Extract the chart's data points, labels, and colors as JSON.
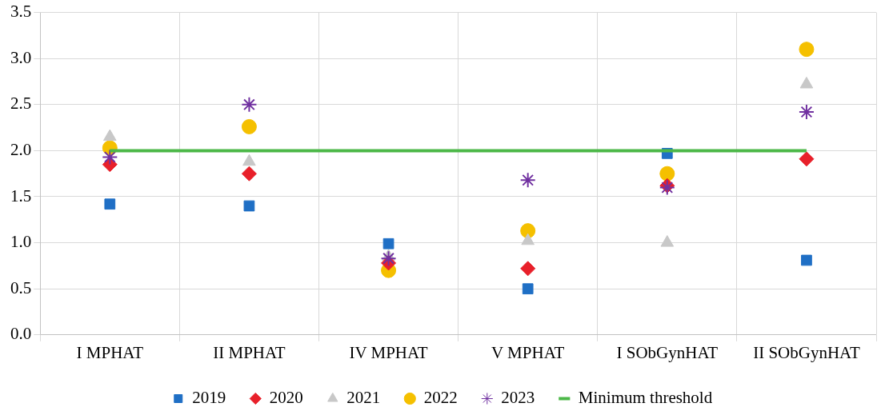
{
  "chart_data": {
    "type": "scatter",
    "categories": [
      "I MPHAT",
      "II MPHAT",
      "IV MPHAT",
      "V MPHAT",
      "I SObGynHAT",
      "II SObGynHAT"
    ],
    "series": [
      {
        "name": "2019",
        "color": "#1f6fc5",
        "marker": "square",
        "values": [
          1.42,
          1.4,
          0.99,
          0.5,
          1.97,
          0.81
        ]
      },
      {
        "name": "2020",
        "color": "#e8202a",
        "marker": "diamond",
        "values": [
          1.85,
          1.75,
          0.78,
          0.72,
          1.62,
          1.91
        ]
      },
      {
        "name": "2021",
        "color": "#c8c8c8",
        "marker": "triangle",
        "values": [
          2.15,
          1.88,
          0.85,
          1.02,
          1.0,
          2.72
        ]
      },
      {
        "name": "2022",
        "color": "#f5c000",
        "marker": "circle",
        "values": [
          2.03,
          2.26,
          0.7,
          1.13,
          1.75,
          3.1
        ]
      },
      {
        "name": "2023",
        "color": "#7030a0",
        "marker": "cross",
        "values": [
          1.93,
          2.5,
          0.83,
          1.68,
          1.6,
          2.42
        ]
      },
      {
        "name": "Minimum threshold",
        "type": "line",
        "color": "#4cb848",
        "marker": "none",
        "values": [
          2.0,
          2.0,
          2.0,
          2.0,
          2.0,
          2.0
        ]
      }
    ],
    "ylim": [
      0,
      3.5
    ],
    "yticks": [
      {
        "value": 0,
        "label": "0.0"
      },
      {
        "value": 0.5,
        "label": "0.5"
      },
      {
        "value": 1,
        "label": "1.0"
      },
      {
        "value": 1.5,
        "label": "1.5"
      },
      {
        "value": 2,
        "label": "2.0"
      },
      {
        "value": 2.5,
        "label": "2.5"
      },
      {
        "value": 3,
        "label": "3.0"
      },
      {
        "value": 3.5,
        "label": "3.5"
      }
    ],
    "grid": true,
    "legend": "bottom"
  }
}
